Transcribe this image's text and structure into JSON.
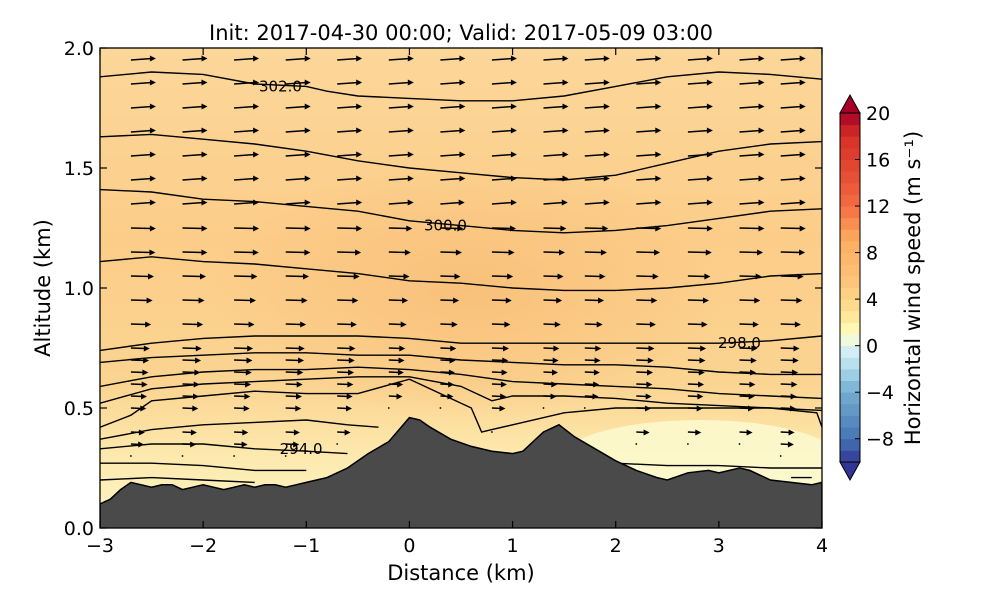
{
  "chart_data": {
    "type": "heatmap",
    "title": "Init: 2017-04-30 00:00; Valid: 2017-05-09 03:00",
    "xlabel": "Distance (km)",
    "ylabel": "Altitude (km)",
    "xlim": [
      -3,
      4
    ],
    "ylim": [
      0.0,
      2.0
    ],
    "xticks": [
      "−3",
      "−2",
      "−1",
      "0",
      "1",
      "2",
      "3",
      "4"
    ],
    "xtick_values": [
      -3,
      -2,
      -1,
      0,
      1,
      2,
      3,
      4
    ],
    "yticks": [
      "0.0",
      "0.5",
      "1.0",
      "1.5",
      "2.0"
    ],
    "ytick_values": [
      0.0,
      0.5,
      1.0,
      1.5,
      2.0
    ],
    "colorbar": {
      "label": "Horizontal wind speed (m s⁻¹)",
      "ticks": [
        "−8",
        "−4",
        "0",
        "4",
        "8",
        "12",
        "16",
        "20"
      ],
      "tick_values": [
        -8,
        -4,
        0,
        4,
        8,
        12,
        16,
        20
      ],
      "range": [
        -10,
        20
      ],
      "colormap": "RdYlBu_r"
    },
    "contour_labels": [
      {
        "text": "302.0",
        "x": -1.25,
        "y": 1.84
      },
      {
        "text": "300.0",
        "x": 0.35,
        "y": 1.26
      },
      {
        "text": "298.0",
        "x": 3.2,
        "y": 0.77
      },
      {
        "text": "294.0",
        "x": -1.05,
        "y": 0.33
      }
    ],
    "theta_contours": [
      {
        "label": "302.0",
        "points": [
          [
            -3,
            1.88
          ],
          [
            -2.5,
            1.9
          ],
          [
            -2,
            1.89
          ],
          [
            -1.5,
            1.85
          ],
          [
            -1,
            1.84
          ],
          [
            -0.8,
            1.82
          ],
          [
            -0.5,
            1.8
          ],
          [
            0,
            1.79
          ],
          [
            0.5,
            1.78
          ],
          [
            1,
            1.78
          ],
          [
            1.5,
            1.8
          ],
          [
            2,
            1.84
          ],
          [
            2.5,
            1.88
          ],
          [
            3,
            1.9
          ],
          [
            3.5,
            1.89
          ],
          [
            4,
            1.87
          ]
        ]
      },
      {
        "points": [
          [
            -3,
            1.63
          ],
          [
            -2.5,
            1.64
          ],
          [
            -2,
            1.62
          ],
          [
            -1.5,
            1.6
          ],
          [
            -1,
            1.57
          ],
          [
            -0.5,
            1.53
          ],
          [
            0,
            1.5
          ],
          [
            0.5,
            1.48
          ],
          [
            1,
            1.46
          ],
          [
            1.5,
            1.45
          ],
          [
            2,
            1.47
          ],
          [
            2.5,
            1.52
          ],
          [
            3,
            1.57
          ],
          [
            3.5,
            1.6
          ],
          [
            4,
            1.61
          ]
        ]
      },
      {
        "label": "300.0",
        "points": [
          [
            -3,
            1.41
          ],
          [
            -2.5,
            1.4
          ],
          [
            -2,
            1.37
          ],
          [
            -1.5,
            1.36
          ],
          [
            -1,
            1.34
          ],
          [
            -0.5,
            1.32
          ],
          [
            0,
            1.28
          ],
          [
            0.5,
            1.26
          ],
          [
            1,
            1.24
          ],
          [
            1.5,
            1.23
          ],
          [
            2,
            1.24
          ],
          [
            2.5,
            1.26
          ],
          [
            3,
            1.29
          ],
          [
            3.5,
            1.32
          ],
          [
            4,
            1.33
          ]
        ]
      },
      {
        "points": [
          [
            -3,
            1.11
          ],
          [
            -2.5,
            1.13
          ],
          [
            -2,
            1.11
          ],
          [
            -1.5,
            1.1
          ],
          [
            -1,
            1.08
          ],
          [
            -0.5,
            1.06
          ],
          [
            0,
            1.03
          ],
          [
            0.5,
            1.02
          ],
          [
            1,
            1.0
          ],
          [
            1.5,
            0.99
          ],
          [
            2,
            0.99
          ],
          [
            2.5,
            1.0
          ],
          [
            3,
            1.02
          ],
          [
            3.5,
            1.05
          ],
          [
            4,
            1.06
          ]
        ]
      },
      {
        "label": "298.0",
        "points": [
          [
            -3,
            0.74
          ],
          [
            -2.5,
            0.77
          ],
          [
            -2,
            0.79
          ],
          [
            -1.5,
            0.8
          ],
          [
            -1,
            0.8
          ],
          [
            -0.5,
            0.8
          ],
          [
            0,
            0.79
          ],
          [
            0.5,
            0.77
          ],
          [
            1,
            0.77
          ],
          [
            1.5,
            0.77
          ],
          [
            2,
            0.77
          ],
          [
            2.5,
            0.77
          ],
          [
            3,
            0.77
          ],
          [
            3.5,
            0.78
          ],
          [
            4,
            0.8
          ]
        ]
      },
      {
        "points": [
          [
            -3,
            0.69
          ],
          [
            -2.5,
            0.71
          ],
          [
            -2,
            0.72
          ],
          [
            -1.5,
            0.73
          ],
          [
            -1,
            0.73
          ],
          [
            -0.5,
            0.72
          ],
          [
            0,
            0.72
          ],
          [
            0.5,
            0.7
          ],
          [
            1,
            0.69
          ],
          [
            1.5,
            0.68
          ],
          [
            2,
            0.68
          ],
          [
            2.5,
            0.67
          ],
          [
            3,
            0.65
          ],
          [
            3.5,
            0.64
          ],
          [
            4,
            0.64
          ]
        ]
      },
      {
        "points": [
          [
            -3,
            0.59
          ],
          [
            -2.5,
            0.63
          ],
          [
            -2,
            0.65
          ],
          [
            -1.5,
            0.66
          ],
          [
            -1,
            0.66
          ],
          [
            -0.5,
            0.67
          ],
          [
            0,
            0.66
          ],
          [
            0.5,
            0.64
          ],
          [
            1,
            0.61
          ],
          [
            1.5,
            0.6
          ],
          [
            2,
            0.59
          ],
          [
            2.5,
            0.58
          ],
          [
            3,
            0.56
          ],
          [
            3.5,
            0.55
          ],
          [
            4,
            0.54
          ]
        ]
      },
      {
        "points": [
          [
            -3,
            0.52
          ],
          [
            -2.5,
            0.58
          ],
          [
            -2,
            0.6
          ],
          [
            -1.5,
            0.61
          ],
          [
            -1,
            0.62
          ],
          [
            -0.5,
            0.63
          ],
          [
            0,
            0.63
          ],
          [
            0.5,
            0.59
          ],
          [
            0.8,
            0.53
          ],
          [
            1,
            0.55
          ],
          [
            1.5,
            0.55
          ],
          [
            2,
            0.54
          ],
          [
            2.5,
            0.52
          ],
          [
            3,
            0.51
          ],
          [
            3.5,
            0.5
          ],
          [
            4,
            0.49
          ]
        ]
      },
      {
        "points": [
          [
            -3,
            0.42
          ],
          [
            -2.7,
            0.47
          ],
          [
            -2.5,
            0.53
          ],
          [
            -2,
            0.55
          ],
          [
            -1.5,
            0.57
          ],
          [
            -1,
            0.56
          ],
          [
            -0.5,
            0.56
          ],
          [
            0,
            0.62
          ],
          [
            0.3,
            0.56
          ],
          [
            0.6,
            0.5
          ],
          [
            0.7,
            0.4
          ],
          [
            0.8,
            0.41
          ],
          [
            1,
            0.43
          ],
          [
            1.5,
            0.48
          ],
          [
            2,
            0.5
          ],
          [
            2.5,
            0.5
          ],
          [
            3,
            0.5
          ],
          [
            3.5,
            0.5
          ],
          [
            3.95,
            0.48
          ],
          [
            4,
            0.42
          ]
        ]
      },
      {
        "points": [
          [
            -3,
            0.37
          ],
          [
            -2.5,
            0.41
          ],
          [
            -2,
            0.43
          ],
          [
            -1.5,
            0.44
          ],
          [
            -1,
            0.45
          ],
          [
            -0.6,
            0.43
          ],
          [
            -0.3,
            0.42
          ]
        ]
      },
      {
        "points": [
          [
            -3,
            0.33
          ],
          [
            -2.5,
            0.35
          ],
          [
            -2,
            0.35
          ],
          [
            -1.5,
            0.33
          ],
          [
            -1,
            0.32
          ],
          [
            -0.6,
            0.31
          ]
        ]
      },
      {
        "label": "294.0",
        "points": [
          [
            -3,
            0.27
          ],
          [
            -2.5,
            0.27
          ],
          [
            -2,
            0.26
          ],
          [
            -1.5,
            0.24
          ],
          [
            -1,
            0.24
          ]
        ]
      },
      {
        "points": [
          [
            1.6,
            0.28
          ],
          [
            2,
            0.27
          ],
          [
            2.5,
            0.26
          ],
          [
            3,
            0.26
          ],
          [
            3.5,
            0.25
          ],
          [
            4,
            0.25
          ]
        ]
      },
      {
        "points": [
          [
            -3,
            0.2
          ],
          [
            -2.5,
            0.21
          ],
          [
            -2,
            0.2
          ],
          [
            -1.5,
            0.19
          ]
        ]
      },
      {
        "points": [
          [
            3.7,
            0.21
          ],
          [
            3.9,
            0.21
          ]
        ]
      }
    ],
    "terrain": [
      [
        -3,
        0.1
      ],
      [
        -2.9,
        0.12
      ],
      [
        -2.8,
        0.16
      ],
      [
        -2.7,
        0.19
      ],
      [
        -2.6,
        0.18
      ],
      [
        -2.5,
        0.17
      ],
      [
        -2.4,
        0.18
      ],
      [
        -2.3,
        0.18
      ],
      [
        -2.2,
        0.16
      ],
      [
        -2.1,
        0.17
      ],
      [
        -2.0,
        0.18
      ],
      [
        -1.9,
        0.17
      ],
      [
        -1.8,
        0.16
      ],
      [
        -1.7,
        0.17
      ],
      [
        -1.6,
        0.18
      ],
      [
        -1.5,
        0.17
      ],
      [
        -1.4,
        0.18
      ],
      [
        -1.3,
        0.18
      ],
      [
        -1.2,
        0.17
      ],
      [
        -1.1,
        0.18
      ],
      [
        -1.0,
        0.19
      ],
      [
        -0.9,
        0.2
      ],
      [
        -0.8,
        0.21
      ],
      [
        -0.6,
        0.25
      ],
      [
        -0.4,
        0.31
      ],
      [
        -0.2,
        0.36
      ],
      [
        -0.1,
        0.41
      ],
      [
        0.0,
        0.46
      ],
      [
        0.1,
        0.45
      ],
      [
        0.2,
        0.42
      ],
      [
        0.4,
        0.37
      ],
      [
        0.6,
        0.34
      ],
      [
        0.8,
        0.32
      ],
      [
        1.0,
        0.31
      ],
      [
        1.1,
        0.32
      ],
      [
        1.2,
        0.36
      ],
      [
        1.3,
        0.4
      ],
      [
        1.45,
        0.43
      ],
      [
        1.6,
        0.38
      ],
      [
        1.8,
        0.33
      ],
      [
        2.0,
        0.28
      ],
      [
        2.2,
        0.24
      ],
      [
        2.4,
        0.21
      ],
      [
        2.5,
        0.2
      ],
      [
        2.7,
        0.23
      ],
      [
        2.9,
        0.24
      ],
      [
        3.0,
        0.23
      ],
      [
        3.2,
        0.25
      ],
      [
        3.3,
        0.24
      ],
      [
        3.5,
        0.2
      ],
      [
        3.7,
        0.19
      ],
      [
        3.9,
        0.18
      ],
      [
        4.0,
        0.19
      ]
    ],
    "wind_field": {
      "direction": "eastward",
      "vector_x_positions": [
        -2.7,
        -2.2,
        -1.7,
        -1.2,
        -0.7,
        -0.2,
        0.3,
        0.8,
        1.3,
        1.7,
        2.2,
        2.7,
        3.2,
        3.6
      ],
      "vector_altitudes": [
        0.3,
        0.35,
        0.4,
        0.5,
        0.55,
        0.6,
        0.65,
        0.7,
        0.75,
        0.85,
        0.95,
        1.05,
        1.15,
        1.25,
        1.35,
        1.45,
        1.55,
        1.65,
        1.75,
        1.85,
        1.95
      ]
    }
  }
}
